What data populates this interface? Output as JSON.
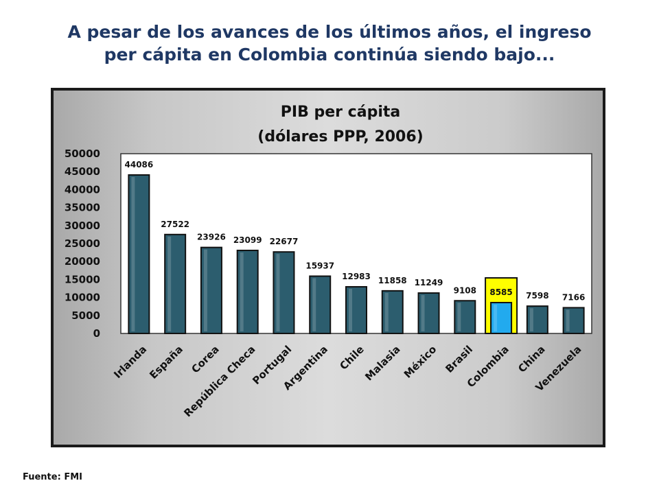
{
  "headline": {
    "line1": "A pesar de los avances de los últimos años, el ingreso",
    "line2": "per cápita en Colombia continúa siendo bajo..."
  },
  "source": "Fuente: FMI",
  "colors": {
    "bar": "#2c5d6e",
    "highlight_bar": "#22aaee",
    "highlight_box": "#ffff00",
    "headline": "#1f3864"
  },
  "chart_data": {
    "type": "bar",
    "title_line1": "PIB per cápita",
    "title_line2": "(dólares PPP, 2006)",
    "categories": [
      "Irlanda",
      "España",
      "Corea",
      "República Checa",
      "Portugal",
      "Argentina",
      "Chile",
      "Malasia",
      "México",
      "Brasil",
      "Colombia",
      "China",
      "Venezuela"
    ],
    "values": [
      44086,
      27522,
      23926,
      23099,
      22677,
      15937,
      12983,
      11858,
      11249,
      9108,
      8585,
      7598,
      7166
    ],
    "highlight": "Colombia",
    "ylim": [
      0,
      50000
    ],
    "yticks": [
      0,
      5000,
      10000,
      15000,
      20000,
      25000,
      30000,
      35000,
      40000,
      45000,
      50000
    ],
    "xlabel": "",
    "ylabel": "",
    "grid": false,
    "legend": "none"
  }
}
